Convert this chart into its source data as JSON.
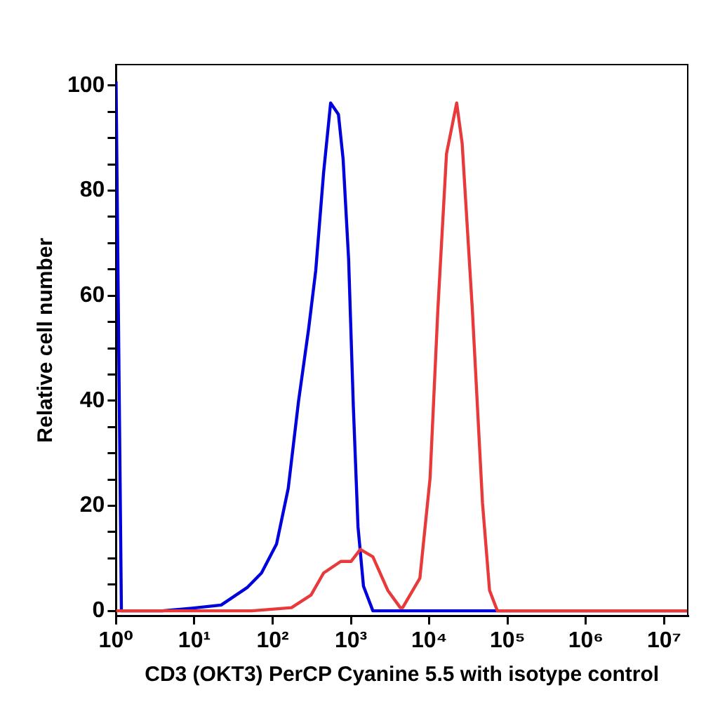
{
  "chart_data": {
    "type": "line",
    "xlabel": "CD3 (OKT3) PerCP Cyanine 5.5 with isotype control",
    "ylabel": "Relative cell number",
    "log": "x",
    "grid": false,
    "legend": false,
    "marker": "none",
    "xlim": [
      1,
      20000000
    ],
    "ylim": [
      -1,
      104
    ],
    "xticks": [
      {
        "value": 1,
        "label": "10⁰"
      },
      {
        "value": 10,
        "label": "10¹"
      },
      {
        "value": 100,
        "label": "10²"
      },
      {
        "value": 1000,
        "label": "10³"
      },
      {
        "value": 10000,
        "label": "10⁴"
      },
      {
        "value": 100000,
        "label": "10⁵"
      },
      {
        "value": 1000000,
        "label": "10⁶"
      },
      {
        "value": 10000000,
        "label": "10⁷"
      }
    ],
    "yticks": [
      0,
      {
        "value": 5,
        "label": null
      },
      {
        "value": 10,
        "label": null
      },
      {
        "value": 15,
        "label": null
      },
      20,
      {
        "value": 25,
        "label": null
      },
      {
        "value": 30,
        "label": null
      },
      {
        "value": 35,
        "label": null
      },
      40,
      {
        "value": 45,
        "label": null
      },
      {
        "value": 50,
        "label": null
      },
      {
        "value": 55,
        "label": null
      },
      60,
      {
        "value": 65,
        "label": null
      },
      {
        "value": 70,
        "label": null
      },
      {
        "value": 75,
        "label": null
      },
      80,
      {
        "value": 85,
        "label": null
      },
      {
        "value": 90,
        "label": null
      },
      {
        "value": 95,
        "label": null
      },
      100
    ],
    "series": [
      {
        "color": "#e83a3a",
        "x": [
          1,
          54,
          174,
          309,
          447,
          741,
          1000,
          1318,
          1905,
          2951,
          4266,
          4571,
          7586,
          10233,
          12882,
          16596,
          22387,
          26303,
          35481,
          47863,
          58884,
          74131,
          20000000
        ],
        "values": [
          0,
          0,
          0.6,
          3,
          7.2,
          9.4,
          9.4,
          11.7,
          10.3,
          3.9,
          0.6,
          0.6,
          6.2,
          25.2,
          57.4,
          87,
          96.7,
          89,
          57.4,
          20.5,
          3.9,
          0,
          0
        ]
      },
      {
        "color": "#0000dd",
        "x": [
          1,
          1.17,
          3.9,
          9.3,
          22,
          47,
          72,
          112,
          158,
          214,
          288,
          355,
          447,
          550,
          692,
          794,
          933,
          1072,
          1230,
          1445,
          1905,
          20000000
        ],
        "values": [
          100.8,
          0,
          0,
          0.5,
          1.1,
          4.4,
          7.2,
          12.7,
          23.3,
          39.9,
          53.7,
          64.8,
          83.4,
          96.7,
          94.5,
          86,
          67,
          39,
          16,
          4.7,
          0,
          0
        ]
      }
    ]
  }
}
